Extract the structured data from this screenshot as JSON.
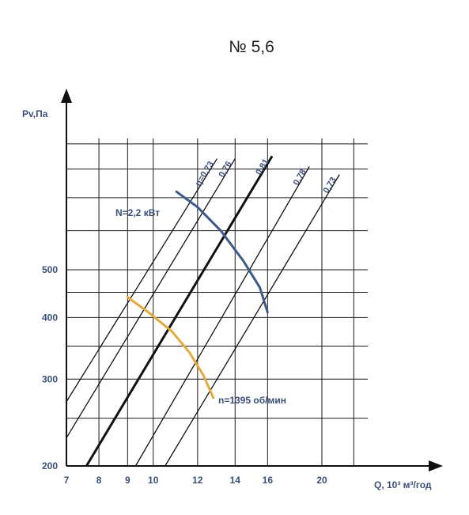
{
  "chart_data": {
    "type": "line",
    "title": "№ 5,6",
    "xlabel": "Q, 10³ м³/год",
    "ylabel": "Pv,Па",
    "x_ticks": [
      7,
      8,
      9,
      10,
      12,
      14,
      16,
      20
    ],
    "y_ticks": [
      200,
      300,
      400,
      500
    ],
    "xlim": [
      7,
      22
    ],
    "ylim": [
      200,
      900
    ],
    "x_scale": "log",
    "y_scale": "log",
    "grid": true,
    "efficiency_lines": [
      {
        "label": "η=0,73",
        "points": [
          [
            7,
            270
          ],
          [
            13,
            840
          ]
        ],
        "bold": false
      },
      {
        "label": "0,76",
        "points": [
          [
            7,
            228
          ],
          [
            14,
            840
          ]
        ],
        "bold": false
      },
      {
        "label": "0,81",
        "points": [
          [
            7.6,
            200
          ],
          [
            16.3,
            850
          ]
        ],
        "bold": true
      },
      {
        "label": "0,78",
        "points": [
          [
            9.3,
            200
          ],
          [
            19,
            810
          ]
        ],
        "bold": false
      },
      {
        "label": "0,73",
        "points": [
          [
            10.5,
            200
          ],
          [
            21.5,
            780
          ]
        ],
        "bold": false
      }
    ],
    "series": [
      {
        "name": "N=2,2 кВт",
        "color": "#3d5a8a",
        "points": [
          [
            11,
            720
          ],
          [
            12,
            670
          ],
          [
            13.2,
            600
          ],
          [
            14.5,
            520
          ],
          [
            15.5,
            460
          ],
          [
            16,
            410
          ]
        ]
      },
      {
        "name": "n=1395 об/мин",
        "color": "#e7a93c",
        "points": [
          [
            9,
            440
          ],
          [
            9.8,
            410
          ],
          [
            10.8,
            375
          ],
          [
            11.6,
            340
          ],
          [
            12.3,
            305
          ],
          [
            12.8,
            275
          ]
        ]
      }
    ],
    "annotations": {
      "power": "N=2,2 кВт",
      "speed": "n=1395 об/мин"
    }
  }
}
